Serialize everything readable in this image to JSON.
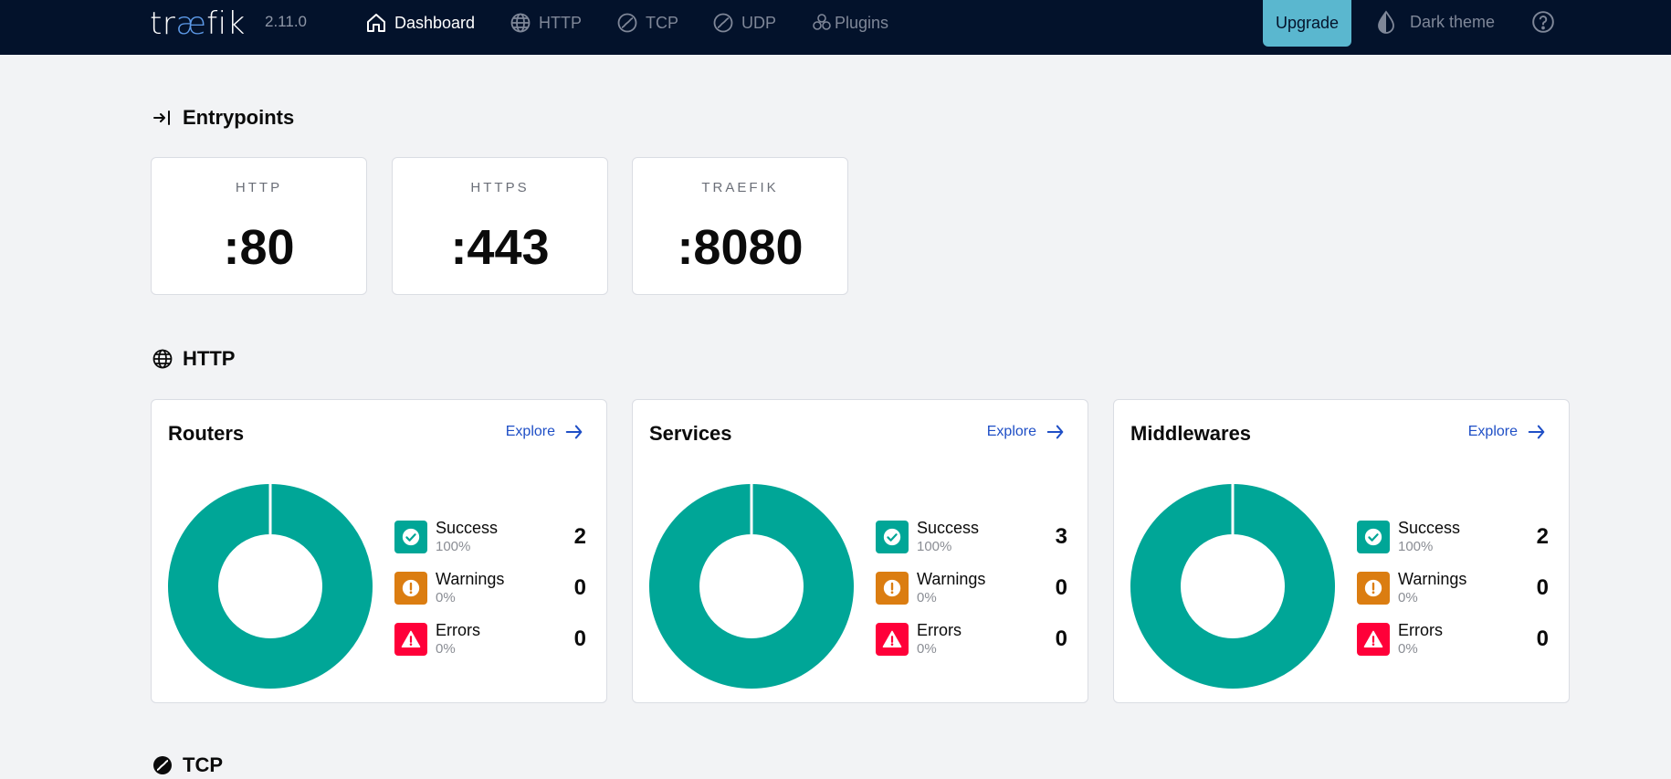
{
  "app": {
    "logo_left": "tr",
    "logo_ae": "æ",
    "logo_right": "fik",
    "version": "2.11.0"
  },
  "nav": {
    "dashboard": "Dashboard",
    "http": "HTTP",
    "tcp": "TCP",
    "udp": "UDP",
    "plugins": "Plugins",
    "upgrade": "Upgrade",
    "dark_theme": "Dark theme"
  },
  "sections": {
    "entrypoints": "Entrypoints",
    "http": "HTTP",
    "tcp": "TCP"
  },
  "entrypoints": [
    {
      "name": "HTTP",
      "port": ":80"
    },
    {
      "name": "HTTPS",
      "port": ":443"
    },
    {
      "name": "TRAEFIK",
      "port": ":8080"
    }
  ],
  "explore_label": "Explore",
  "http_stats": [
    {
      "title": "Routers",
      "success": {
        "label": "Success",
        "pct": "100%",
        "count": "2"
      },
      "warnings": {
        "label": "Warnings",
        "pct": "0%",
        "count": "0"
      },
      "errors": {
        "label": "Errors",
        "pct": "0%",
        "count": "0"
      }
    },
    {
      "title": "Services",
      "success": {
        "label": "Success",
        "pct": "100%",
        "count": "3"
      },
      "warnings": {
        "label": "Warnings",
        "pct": "0%",
        "count": "0"
      },
      "errors": {
        "label": "Errors",
        "pct": "0%",
        "count": "0"
      }
    },
    {
      "title": "Middlewares",
      "success": {
        "label": "Success",
        "pct": "100%",
        "count": "2"
      },
      "warnings": {
        "label": "Warnings",
        "pct": "0%",
        "count": "0"
      },
      "errors": {
        "label": "Errors",
        "pct": "0%",
        "count": "0"
      }
    }
  ],
  "colors": {
    "topbar": "#03122b",
    "success": "#00a697",
    "warning": "#db7d11",
    "error": "#ff0039",
    "accent": "#5ab7cf",
    "link": "#1f4fc6"
  }
}
